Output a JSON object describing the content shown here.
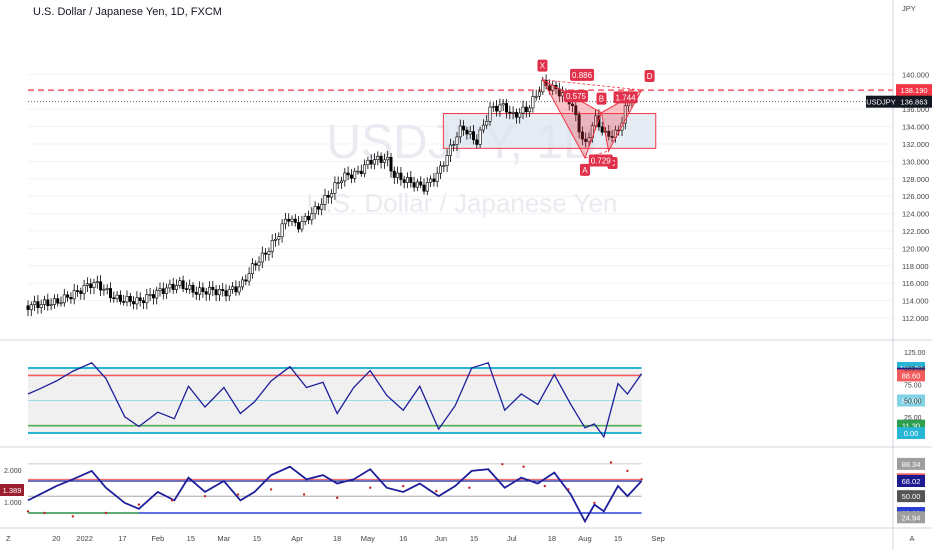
{
  "symbol_title": "U.S. Dollar / Japanese Yen, 1D, FXCM",
  "watermark": {
    "ticker": "USDJPY, 1D",
    "name": "U.S. Dollar / Japanese Yen"
  },
  "axis_currency": "JPY",
  "price_tag": {
    "symbol": "USDJPY",
    "value": "136.863"
  },
  "resistance_tag": "138.190",
  "z_label": "Z",
  "a_label": "A",
  "colors": {
    "candle_up": "#ffffff",
    "candle_down": "#000000",
    "bearish_red": "#f23645",
    "zone_fill": "#dbe4f0",
    "osc_line": "#1e1e9a",
    "band_cyan": "#29b6d6",
    "band_red": "#f25c5c",
    "band_green": "#4caf50",
    "tag_navy": "#1b1b8f",
    "tag_gray": "#9e9e9e",
    "tag_green": "#2e9e4f",
    "tag_red": "#e0304a",
    "tag_blue": "#2a3fd6"
  },
  "chart_data": [
    {
      "type": "candlestick",
      "title": "U.S. Dollar / Japanese Yen, 1D, FXCM",
      "ylabel": "JPY",
      "ylim": [
        110.6,
        141.6
      ],
      "y_ticks": [
        "112.000",
        "114.000",
        "116.000",
        "118.000",
        "120.000",
        "122.000",
        "124.000",
        "126.000",
        "128.000",
        "130.000",
        "132.000",
        "134.000",
        "136.000",
        "138.000",
        "140.000"
      ],
      "x_ticks": [
        "20",
        "2022",
        "17",
        "Feb",
        "15",
        "Mar",
        "15",
        "Apr",
        "18",
        "May",
        "16",
        "Jun",
        "15",
        "Jul",
        "18",
        "Aug",
        "15",
        "Sep"
      ],
      "close_path": [
        [
          "2021-12-08",
          113.4
        ],
        [
          "2021-12-13",
          113.6
        ],
        [
          "2021-12-20",
          113.8
        ],
        [
          "2021-12-27",
          114.7
        ],
        [
          "2022-01-04",
          116.0
        ],
        [
          "2022-01-07",
          115.8
        ],
        [
          "2022-01-14",
          114.2
        ],
        [
          "2022-01-24",
          113.9
        ],
        [
          "2022-02-01",
          115.0
        ],
        [
          "2022-02-10",
          115.9
        ],
        [
          "2022-02-17",
          115.0
        ],
        [
          "2022-02-24",
          115.2
        ],
        [
          "2022-03-01",
          114.9
        ],
        [
          "2022-03-08",
          115.6
        ],
        [
          "2022-03-14",
          118.2
        ],
        [
          "2022-03-18",
          119.2
        ],
        [
          "2022-03-23",
          121.1
        ],
        [
          "2022-03-28",
          123.7
        ],
        [
          "2022-04-01",
          122.5
        ],
        [
          "2022-04-08",
          124.2
        ],
        [
          "2022-04-14",
          126.0
        ],
        [
          "2022-04-20",
          128.2
        ],
        [
          "2022-04-27",
          128.7
        ],
        [
          "2022-05-02",
          130.1
        ],
        [
          "2022-05-09",
          130.3
        ],
        [
          "2022-05-12",
          128.4
        ],
        [
          "2022-05-19",
          127.6
        ],
        [
          "2022-05-25",
          127.0
        ],
        [
          "2022-05-31",
          128.7
        ],
        [
          "2022-06-07",
          132.6
        ],
        [
          "2022-06-10",
          134.0
        ],
        [
          "2022-06-16",
          132.2
        ],
        [
          "2022-06-22",
          136.1
        ],
        [
          "2022-06-28",
          136.4
        ],
        [
          "2022-07-01",
          135.2
        ],
        [
          "2022-07-08",
          136.1
        ],
        [
          "2022-07-14",
          138.9
        ],
        [
          "2022-07-20",
          138.2
        ],
        [
          "2022-07-26",
          136.9
        ],
        [
          "2022-08-01",
          131.6
        ],
        [
          "2022-08-05",
          135.0
        ],
        [
          "2022-08-10",
          132.9
        ],
        [
          "2022-08-15",
          133.3
        ],
        [
          "2022-08-19",
          136.9
        ],
        [
          "2022-08-22",
          137.6
        ]
      ],
      "resistance_level": 138.19,
      "last_price": 136.863,
      "demand_zone": {
        "from": "2022-06-02",
        "to": "2022-08-31",
        "low": 131.5,
        "high": 135.5
      },
      "harmonic_pattern": {
        "points": [
          {
            "label": "X",
            "date": "2022-07-14",
            "price": 139.4
          },
          {
            "label": "A",
            "date": "2022-08-01",
            "price": 130.4
          },
          {
            "label": "B",
            "date": "2022-08-08",
            "price": 135.6
          },
          {
            "label": "C",
            "date": "2022-08-11",
            "price": 131.2
          },
          {
            "label": "D",
            "date": "2022-08-25",
            "price": 138.2
          }
        ],
        "ratios": [
          "0.575",
          "0.886",
          "0.729",
          "1.744"
        ]
      }
    },
    {
      "type": "line",
      "name": "oscillator-1",
      "y_ticks": [
        "25.00",
        "50.00",
        "75.00",
        "100.00",
        "125.00"
      ],
      "levels": {
        "upper": 100,
        "red": 88.6,
        "mid": 50,
        "green": 11.3,
        "lower": 0
      },
      "tags": [
        "100.00",
        "91.26",
        "88.60",
        "50.00",
        "11.30",
        "0.00"
      ],
      "values": [
        [
          "2021-12-08",
          60
        ],
        [
          "2021-12-13",
          68
        ],
        [
          "2021-12-20",
          80
        ],
        [
          "2021-12-27",
          95
        ],
        [
          "2022-01-04",
          108
        ],
        [
          "2022-01-10",
          84
        ],
        [
          "2022-01-18",
          25
        ],
        [
          "2022-01-24",
          10
        ],
        [
          "2022-02-01",
          32
        ],
        [
          "2022-02-08",
          22
        ],
        [
          "2022-02-14",
          72
        ],
        [
          "2022-02-21",
          40
        ],
        [
          "2022-03-01",
          70
        ],
        [
          "2022-03-08",
          30
        ],
        [
          "2022-03-14",
          48
        ],
        [
          "2022-03-21",
          80
        ],
        [
          "2022-03-29",
          102
        ],
        [
          "2022-04-05",
          70
        ],
        [
          "2022-04-12",
          78
        ],
        [
          "2022-04-18",
          30
        ],
        [
          "2022-04-25",
          70
        ],
        [
          "2022-05-02",
          96
        ],
        [
          "2022-05-09",
          58
        ],
        [
          "2022-05-16",
          35
        ],
        [
          "2022-05-23",
          72
        ],
        [
          "2022-05-31",
          6
        ],
        [
          "2022-06-07",
          42
        ],
        [
          "2022-06-14",
          100
        ],
        [
          "2022-06-21",
          108
        ],
        [
          "2022-06-28",
          35
        ],
        [
          "2022-07-05",
          60
        ],
        [
          "2022-07-12",
          44
        ],
        [
          "2022-07-19",
          90
        ],
        [
          "2022-07-26",
          44
        ],
        [
          "2022-08-01",
          8
        ],
        [
          "2022-08-05",
          14
        ],
        [
          "2022-08-09",
          -6
        ],
        [
          "2022-08-15",
          76
        ],
        [
          "2022-08-19",
          60
        ],
        [
          "2022-08-25",
          91.26
        ]
      ]
    },
    {
      "type": "line",
      "name": "oscillator-2",
      "y_ticks": [
        "1.000",
        "2.000"
      ],
      "z_value": "1.389",
      "levels": {
        "top_gray": 88.34,
        "red": 70,
        "navy": 68.02,
        "mid": 50,
        "blue": 30,
        "bottom_gray": 24.94
      },
      "tags": [
        "88.34",
        "70.00",
        "68.02",
        "50.00",
        "30.00",
        "24.94"
      ],
      "values": [
        [
          "2021-12-08",
          45
        ],
        [
          "2021-12-13",
          52
        ],
        [
          "2021-12-20",
          62
        ],
        [
          "2021-12-27",
          70
        ],
        [
          "2022-01-04",
          80
        ],
        [
          "2022-01-10",
          60
        ],
        [
          "2022-01-18",
          42
        ],
        [
          "2022-01-24",
          35
        ],
        [
          "2022-02-01",
          55
        ],
        [
          "2022-02-08",
          45
        ],
        [
          "2022-02-14",
          72
        ],
        [
          "2022-02-21",
          55
        ],
        [
          "2022-03-01",
          68
        ],
        [
          "2022-03-08",
          45
        ],
        [
          "2022-03-14",
          55
        ],
        [
          "2022-03-21",
          75
        ],
        [
          "2022-03-29",
          85
        ],
        [
          "2022-04-05",
          70
        ],
        [
          "2022-04-12",
          75
        ],
        [
          "2022-04-18",
          65
        ],
        [
          "2022-04-25",
          70
        ],
        [
          "2022-05-02",
          82
        ],
        [
          "2022-05-09",
          60
        ],
        [
          "2022-05-16",
          55
        ],
        [
          "2022-05-23",
          65
        ],
        [
          "2022-05-31",
          50
        ],
        [
          "2022-06-07",
          62
        ],
        [
          "2022-06-14",
          80
        ],
        [
          "2022-06-21",
          82
        ],
        [
          "2022-06-28",
          60
        ],
        [
          "2022-07-05",
          72
        ],
        [
          "2022-07-12",
          65
        ],
        [
          "2022-07-19",
          78
        ],
        [
          "2022-07-26",
          52
        ],
        [
          "2022-08-01",
          20
        ],
        [
          "2022-08-05",
          40
        ],
        [
          "2022-08-09",
          32
        ],
        [
          "2022-08-15",
          62
        ],
        [
          "2022-08-19",
          50
        ],
        [
          "2022-08-25",
          68
        ]
      ],
      "dotted_values": [
        [
          "2021-12-08",
          32
        ],
        [
          "2021-12-15",
          30
        ],
        [
          "2021-12-27",
          26
        ],
        [
          "2022-01-10",
          30
        ],
        [
          "2022-01-24",
          40
        ],
        [
          "2022-02-07",
          45
        ],
        [
          "2022-02-21",
          50
        ],
        [
          "2022-03-07",
          52
        ],
        [
          "2022-03-21",
          58
        ],
        [
          "2022-04-04",
          52
        ],
        [
          "2022-04-18",
          48
        ],
        [
          "2022-05-02",
          60
        ],
        [
          "2022-05-16",
          62
        ],
        [
          "2022-05-30",
          56
        ],
        [
          "2022-06-13",
          60
        ],
        [
          "2022-06-27",
          88
        ],
        [
          "2022-07-06",
          85
        ],
        [
          "2022-07-15",
          62
        ],
        [
          "2022-07-25",
          58
        ],
        [
          "2022-08-05",
          42
        ],
        [
          "2022-08-12",
          90
        ],
        [
          "2022-08-19",
          80
        ],
        [
          "2022-08-25",
          70
        ]
      ]
    }
  ]
}
